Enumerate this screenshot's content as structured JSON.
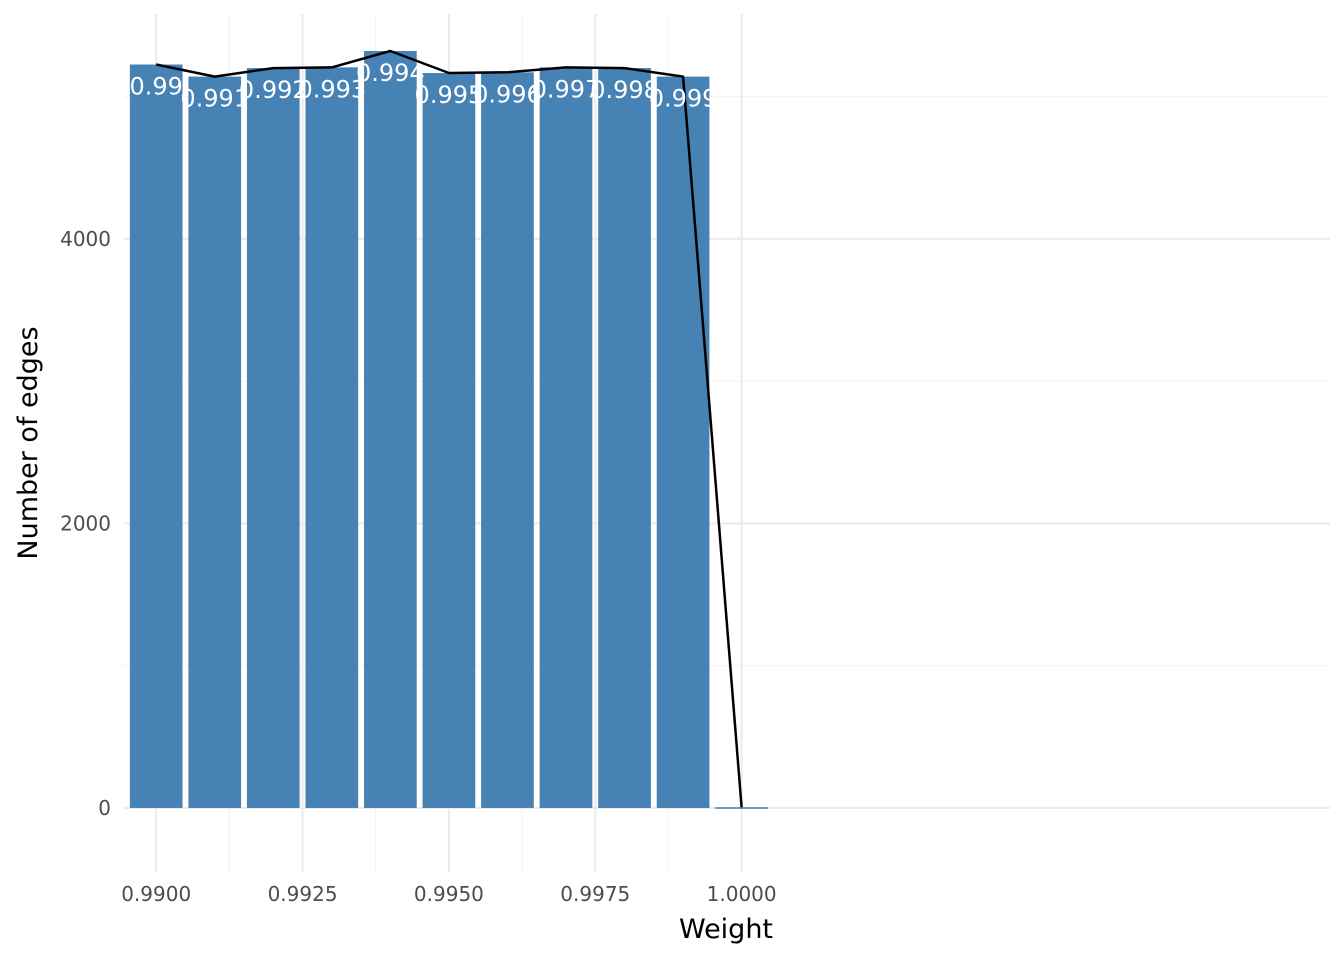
{
  "chart_data": {
    "type": "bar",
    "x": [
      0.99,
      0.991,
      0.992,
      0.993,
      0.994,
      0.995,
      0.996,
      0.997,
      0.998,
      0.999,
      1.0
    ],
    "values": [
      5225,
      5140,
      5200,
      5205,
      5320,
      5165,
      5170,
      5205,
      5200,
      5140,
      5
    ],
    "bar_labels": [
      "0.99",
      "0.991",
      "0.992",
      "0.993",
      "0.994",
      "0.995",
      "0.996",
      "0.997",
      "0.998",
      "0.999",
      ""
    ],
    "line_values": [
      5225,
      5140,
      5200,
      5205,
      5320,
      5165,
      5170,
      5205,
      5200,
      5140,
      5
    ],
    "xlabel": "Weight",
    "ylabel": "Number of edges",
    "x_ticks": [
      "0.9900",
      "0.9925",
      "0.9950",
      "0.9975",
      "1.0000"
    ],
    "x_tick_values": [
      0.99,
      0.9925,
      0.995,
      0.9975,
      1.0
    ],
    "y_ticks": [
      "0",
      "2000",
      "4000"
    ],
    "y_tick_values": [
      0,
      2000,
      4000
    ],
    "xlim": [
      0.98945,
      1.01005
    ],
    "ylim": [
      -450,
      5580
    ],
    "grid": true,
    "bar_color": "#4682B4",
    "line_color": "#000000"
  }
}
